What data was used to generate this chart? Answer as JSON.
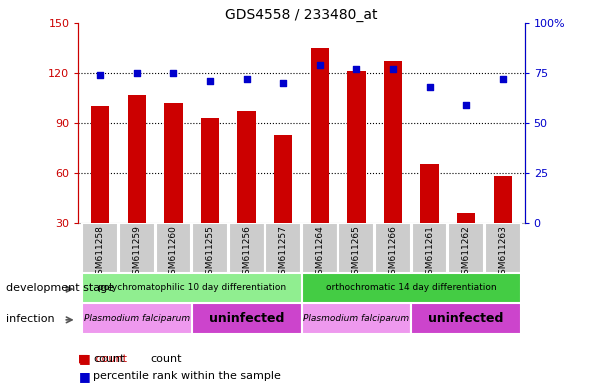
{
  "title": "GDS4558 / 233480_at",
  "categories": [
    "GSM611258",
    "GSM611259",
    "GSM611260",
    "GSM611255",
    "GSM611256",
    "GSM611257",
    "GSM611264",
    "GSM611265",
    "GSM611266",
    "GSM611261",
    "GSM611262",
    "GSM611263"
  ],
  "counts": [
    100,
    107,
    102,
    93,
    97,
    83,
    135,
    121,
    127,
    65,
    36,
    58
  ],
  "percentiles": [
    74,
    75,
    75,
    71,
    72,
    70,
    79,
    77,
    77,
    68,
    59,
    72
  ],
  "ylim_left": [
    30,
    150
  ],
  "ylim_right": [
    0,
    100
  ],
  "yticks_left": [
    30,
    60,
    90,
    120,
    150
  ],
  "yticks_right": [
    0,
    25,
    50,
    75,
    100
  ],
  "bar_color": "#cc0000",
  "dot_color": "#0000cc",
  "dev_stage_groups": [
    {
      "label": "polychromatophilic 10 day differentiation",
      "start": 0,
      "end": 6,
      "color": "#90ee90"
    },
    {
      "label": "orthochromatic 14 day differentiation",
      "start": 6,
      "end": 12,
      "color": "#44cc44"
    }
  ],
  "infection_groups": [
    {
      "label": "Plasmodium falciparum",
      "start": 0,
      "end": 3,
      "color": "#ee99ee"
    },
    {
      "label": "uninfected",
      "start": 3,
      "end": 6,
      "color": "#cc44cc"
    },
    {
      "label": "Plasmodium falciparum",
      "start": 6,
      "end": 9,
      "color": "#ee99ee"
    },
    {
      "label": "uninfected",
      "start": 9,
      "end": 12,
      "color": "#cc44cc"
    }
  ],
  "tick_label_bg": "#cccccc",
  "left_axis_color": "#cc0000",
  "right_axis_color": "#0000cc",
  "fig_width": 6.03,
  "fig_height": 3.84,
  "dpi": 100
}
